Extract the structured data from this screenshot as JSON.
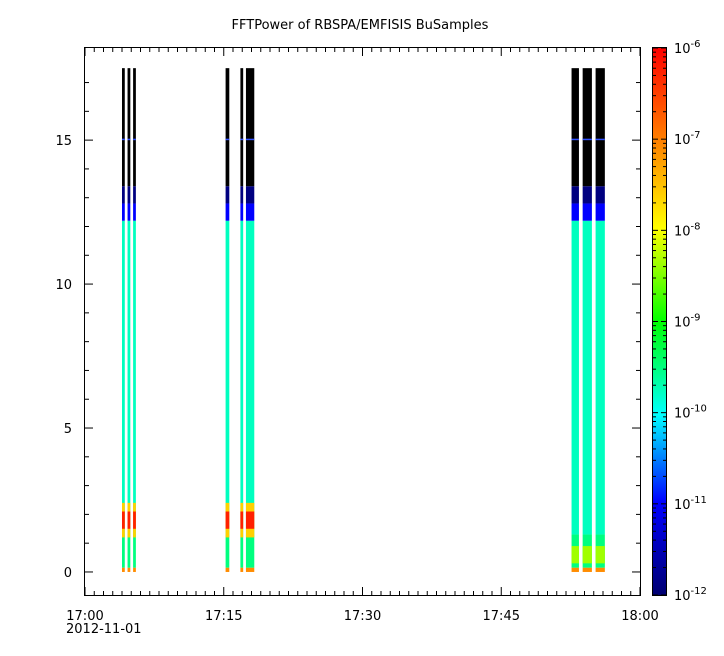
{
  "chart_data": {
    "type": "heatmap",
    "title": "FFTPower of RBSPA/EMFISIS  BuSamples",
    "xlabel": "",
    "ylabel": "",
    "x_axis": {
      "range": [
        "17:00",
        "18:00"
      ],
      "tick_labels": [
        "17:00",
        "17:15",
        "17:30",
        "17:45",
        "18:00"
      ],
      "date_label": "2012-11-01"
    },
    "y_axis": {
      "range": [
        -0.8,
        18.2
      ],
      "ticks": [
        0,
        5,
        10,
        15
      ],
      "tick_labels": [
        "0",
        "5",
        "10",
        "15"
      ]
    },
    "colorbar": {
      "scale": "log",
      "range": [
        1e-12,
        1e-06
      ],
      "tick_labels": [
        {
          "base": "10",
          "exp": "-6"
        },
        {
          "base": "10",
          "exp": "-7"
        },
        {
          "base": "10",
          "exp": "-8"
        },
        {
          "base": "10",
          "exp": "-9"
        },
        {
          "base": "10",
          "exp": "-10"
        },
        {
          "base": "10",
          "exp": "-11"
        },
        {
          "base": "10",
          "exp": "-12"
        }
      ],
      "colors": [
        "#000080",
        "#0000ff",
        "#00ffff",
        "#00ff00",
        "#ffff00",
        "#ff0000"
      ]
    },
    "grid": false,
    "data_gap_fill": "#ffffff",
    "columns": [
      {
        "t_start_min": 4.0,
        "t_end_min": 4.3,
        "low_band_power": "1e-7"
      },
      {
        "t_start_min": 4.6,
        "t_end_min": 4.9,
        "low_band_power": "1e-7"
      },
      {
        "t_start_min": 5.2,
        "t_end_min": 5.5,
        "low_band_power": "1e-7"
      },
      {
        "t_start_min": 15.2,
        "t_end_min": 15.6,
        "low_band_power": "1e-7"
      },
      {
        "t_start_min": 16.8,
        "t_end_min": 17.1,
        "low_band_power": "1e-7"
      },
      {
        "t_start_min": 17.4,
        "t_end_min": 18.3,
        "low_band_power": "1e-7"
      },
      {
        "t_start_min": 52.6,
        "t_end_min": 53.4,
        "low_band_power": "1e-8"
      },
      {
        "t_start_min": 53.8,
        "t_end_min": 54.8,
        "low_band_power": "1e-8"
      },
      {
        "t_start_min": 55.2,
        "t_end_min": 56.2,
        "low_band_power": "1e-8"
      }
    ],
    "spectral_profile": [
      {
        "freq_from": 0.0,
        "freq_to": 0.15,
        "color": "#ff8c00"
      },
      {
        "freq_from": 0.15,
        "freq_to": 1.3,
        "color": "#00ff7f"
      },
      {
        "freq_from": 12.2,
        "freq_to": 12.8,
        "color": "#0000ff"
      },
      {
        "freq_from": 12.8,
        "freq_to": 13.4,
        "color": "#000080"
      },
      {
        "freq_from": 13.4,
        "freq_to": 17.5,
        "color": "#000000"
      }
    ]
  }
}
